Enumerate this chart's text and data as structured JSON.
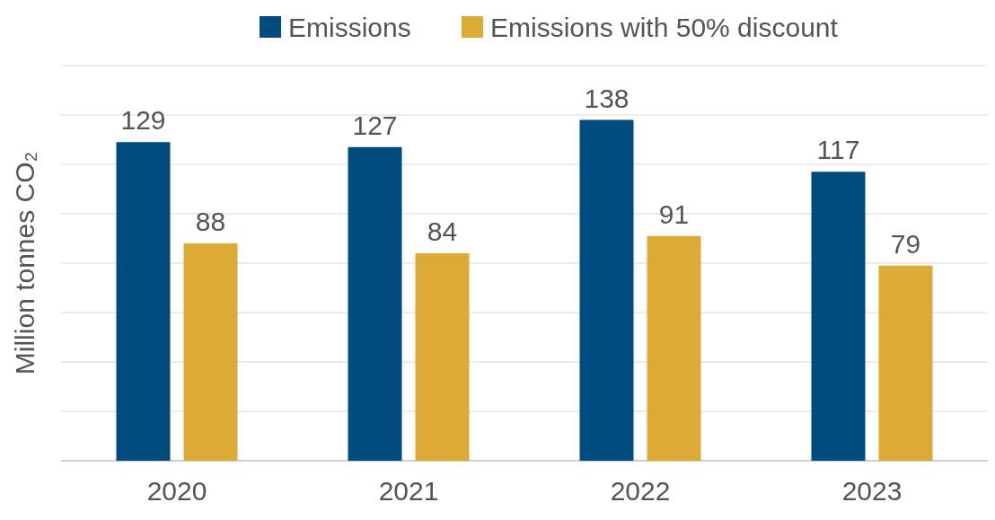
{
  "chart_data": {
    "type": "bar",
    "ylabel": "Million tonnes CO₂",
    "categories": [
      "2020",
      "2021",
      "2022",
      "2023"
    ],
    "series": [
      {
        "name": "Emissions",
        "color": "#004c7f",
        "values": [
          129,
          127,
          138,
          117
        ]
      },
      {
        "name": "Emissions with 50% discount",
        "color": "#dcab36",
        "values": [
          88,
          84,
          91,
          79
        ]
      }
    ],
    "ylim": [
      0,
      160
    ],
    "yticks": [
      {
        "value": 0,
        "label": null
      },
      {
        "value": 20,
        "label": null
      },
      {
        "value": 40,
        "label": null
      },
      {
        "value": 60,
        "label": null
      },
      {
        "value": 80,
        "label": null
      },
      {
        "value": 100,
        "label": null
      },
      {
        "value": 120,
        "label": null
      },
      {
        "value": 140,
        "label": null
      },
      {
        "value": 160,
        "label": null
      }
    ],
    "tick_labels": "x",
    "grid": "y",
    "legend": "top",
    "data_labels": true
  }
}
